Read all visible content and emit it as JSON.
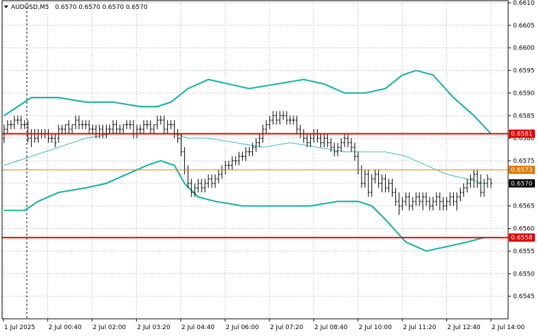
{
  "header": {
    "symbol": "AUDUSD,M5",
    "ohlc": "0.6570 0.6570 0.6570 0.6570"
  },
  "colors": {
    "background": "#ffffff",
    "grid": "#c8c8c8",
    "bars": "#000000",
    "bollinger": "#20b2aa",
    "ma": "#20b2aa",
    "strong_level": "#e00000",
    "orange_level": "#e07a00",
    "current_price": "#000000"
  },
  "chart_data": {
    "type": "ohlc-bars",
    "symbol": "AUDUSD",
    "timeframe": "M5",
    "ylim": [
      0.654,
      0.661
    ],
    "y_ticks": [
      "0.6610",
      "0.6605",
      "0.6600",
      "0.6595",
      "0.6590",
      "0.6585",
      "0.6580",
      "0.6575",
      "0.6570",
      "0.6565",
      "0.6560",
      "0.6555",
      "0.6550",
      "0.6545"
    ],
    "x_ticks": [
      "1 Jul 2025",
      "2 Jul 00:40",
      "2 Jul 02:00",
      "2 Jul 03:20",
      "2 Jul 04:40",
      "2 Jul 06:00",
      "2 Jul 07:20",
      "2 Jul 08:40",
      "2 Jul 10:00",
      "2 Jul 11:20",
      "2 Jul 12:40",
      "2 Jul 14:00"
    ],
    "period_separator_index": 0.5,
    "levels": [
      {
        "price": 0.6581,
        "label": "0.6581",
        "color": "#e00000",
        "width": 2
      },
      {
        "price": 0.6573,
        "label": "0.6573",
        "color": "#e07a00",
        "width": 1
      },
      {
        "price": 0.6558,
        "label": "0.6558",
        "color": "#e00000",
        "width": 2
      }
    ],
    "current_price": {
      "price": 0.657,
      "label": "0.6570"
    },
    "bollinger_upper": [
      [
        0,
        0.6585
      ],
      [
        4,
        0.6587
      ],
      [
        8,
        0.6589
      ],
      [
        16,
        0.6589
      ],
      [
        24,
        0.6588
      ],
      [
        32,
        0.6588
      ],
      [
        40,
        0.6587
      ],
      [
        45,
        0.6587
      ],
      [
        49,
        0.6588
      ],
      [
        54,
        0.6591
      ],
      [
        60,
        0.6593
      ],
      [
        66,
        0.6592
      ],
      [
        72,
        0.6591
      ],
      [
        80,
        0.6592
      ],
      [
        88,
        0.6593
      ],
      [
        94,
        0.6592
      ],
      [
        100,
        0.659
      ],
      [
        106,
        0.659
      ],
      [
        112,
        0.6591
      ],
      [
        117,
        0.6594
      ],
      [
        121,
        0.6595
      ],
      [
        126,
        0.6594
      ],
      [
        132,
        0.6589
      ],
      [
        138,
        0.6585
      ],
      [
        143,
        0.6581
      ]
    ],
    "bollinger_lower": [
      [
        0,
        0.6564
      ],
      [
        6,
        0.6564
      ],
      [
        10,
        0.6566
      ],
      [
        16,
        0.6568
      ],
      [
        24,
        0.6569
      ],
      [
        30,
        0.657
      ],
      [
        36,
        0.6572
      ],
      [
        42,
        0.6574
      ],
      [
        46,
        0.6575
      ],
      [
        50,
        0.6574
      ],
      [
        53,
        0.657
      ],
      [
        57,
        0.6567
      ],
      [
        62,
        0.6566
      ],
      [
        70,
        0.6565
      ],
      [
        80,
        0.6565
      ],
      [
        90,
        0.6565
      ],
      [
        98,
        0.6566
      ],
      [
        104,
        0.6566
      ],
      [
        108,
        0.6565
      ],
      [
        112,
        0.6562
      ],
      [
        118,
        0.6557
      ],
      [
        124,
        0.6555
      ],
      [
        130,
        0.6556
      ],
      [
        136,
        0.6557
      ],
      [
        141,
        0.6558
      ]
    ],
    "ma_middle": [
      [
        0,
        0.6574
      ],
      [
        8,
        0.6576
      ],
      [
        16,
        0.6578
      ],
      [
        24,
        0.658
      ],
      [
        32,
        0.6581
      ],
      [
        40,
        0.6581
      ],
      [
        46,
        0.6581
      ],
      [
        50,
        0.6581
      ],
      [
        54,
        0.658
      ],
      [
        60,
        0.658
      ],
      [
        68,
        0.6579
      ],
      [
        76,
        0.6578
      ],
      [
        84,
        0.6579
      ],
      [
        92,
        0.6578
      ],
      [
        100,
        0.6577
      ],
      [
        106,
        0.6577
      ],
      [
        112,
        0.6577
      ],
      [
        118,
        0.6576
      ],
      [
        124,
        0.6574
      ],
      [
        130,
        0.6572
      ],
      [
        136,
        0.6571
      ],
      [
        141,
        0.657
      ]
    ],
    "bars": [
      [
        0.658,
        0.6583,
        0.6579,
        0.6582
      ],
      [
        0.6582,
        0.6584,
        0.6581,
        0.6583
      ],
      [
        0.6583,
        0.6584,
        0.6582,
        0.6583
      ],
      [
        0.6583,
        0.6585,
        0.6582,
        0.6584
      ],
      [
        0.6584,
        0.6585,
        0.6583,
        0.6584
      ],
      [
        0.6584,
        0.6585,
        0.6582,
        0.6583
      ],
      [
        0.6583,
        0.6584,
        0.6582,
        0.6583
      ],
      [
        0.6583,
        0.6584,
        0.6579,
        0.658
      ],
      [
        0.658,
        0.6582,
        0.6578,
        0.6581
      ],
      [
        0.6581,
        0.6582,
        0.6579,
        0.658
      ],
      [
        0.658,
        0.6582,
        0.6579,
        0.6581
      ],
      [
        0.6581,
        0.6582,
        0.658,
        0.6581
      ],
      [
        0.6581,
        0.6582,
        0.658,
        0.6581
      ],
      [
        0.6581,
        0.6582,
        0.6579,
        0.658
      ],
      [
        0.658,
        0.6581,
        0.6579,
        0.658
      ],
      [
        0.658,
        0.6581,
        0.6578,
        0.6579
      ],
      [
        0.658,
        0.6583,
        0.6579,
        0.6582
      ],
      [
        0.6582,
        0.6583,
        0.6581,
        0.6582
      ],
      [
        0.6582,
        0.6583,
        0.6581,
        0.6583
      ],
      [
        0.6583,
        0.6584,
        0.6581,
        0.6582
      ],
      [
        0.6582,
        0.6583,
        0.6581,
        0.6583
      ],
      [
        0.6583,
        0.6585,
        0.6582,
        0.6584
      ],
      [
        0.6584,
        0.6585,
        0.6582,
        0.6583
      ],
      [
        0.6583,
        0.6584,
        0.6582,
        0.6583
      ],
      [
        0.6583,
        0.6584,
        0.6582,
        0.6583
      ],
      [
        0.6583,
        0.6584,
        0.6581,
        0.6582
      ],
      [
        0.6582,
        0.6583,
        0.6581,
        0.6582
      ],
      [
        0.6582,
        0.6583,
        0.658,
        0.6581
      ],
      [
        0.6581,
        0.6583,
        0.658,
        0.6582
      ],
      [
        0.6582,
        0.6583,
        0.658,
        0.6581
      ],
      [
        0.6581,
        0.6583,
        0.658,
        0.6582
      ],
      [
        0.6582,
        0.6583,
        0.6581,
        0.6582
      ],
      [
        0.6582,
        0.6584,
        0.6581,
        0.6583
      ],
      [
        0.6583,
        0.6584,
        0.6581,
        0.6582
      ],
      [
        0.6582,
        0.6583,
        0.6581,
        0.6582
      ],
      [
        0.6582,
        0.6583,
        0.6581,
        0.6583
      ],
      [
        0.6583,
        0.6584,
        0.6582,
        0.6583
      ],
      [
        0.6583,
        0.6584,
        0.6582,
        0.6583
      ],
      [
        0.6583,
        0.6584,
        0.658,
        0.6581
      ],
      [
        0.6581,
        0.6583,
        0.658,
        0.6582
      ],
      [
        0.6582,
        0.6583,
        0.6581,
        0.6582
      ],
      [
        0.6582,
        0.6584,
        0.6581,
        0.6583
      ],
      [
        0.6583,
        0.6584,
        0.6582,
        0.6583
      ],
      [
        0.6583,
        0.6584,
        0.6581,
        0.6582
      ],
      [
        0.6582,
        0.6583,
        0.6581,
        0.6583
      ],
      [
        0.6583,
        0.6585,
        0.6582,
        0.6584
      ],
      [
        0.6584,
        0.6585,
        0.6583,
        0.6584
      ],
      [
        0.6584,
        0.6585,
        0.6581,
        0.6582
      ],
      [
        0.6582,
        0.6584,
        0.6581,
        0.6583
      ],
      [
        0.6583,
        0.6584,
        0.6582,
        0.6583
      ],
      [
        0.6583,
        0.6584,
        0.658,
        0.6581
      ],
      [
        0.6581,
        0.6582,
        0.6579,
        0.658
      ],
      [
        0.658,
        0.6581,
        0.6576,
        0.6577
      ],
      [
        0.6577,
        0.6578,
        0.6572,
        0.6573
      ],
      [
        0.6573,
        0.6574,
        0.6569,
        0.657
      ],
      [
        0.657,
        0.6571,
        0.6567,
        0.6568
      ],
      [
        0.6568,
        0.657,
        0.6567,
        0.6569
      ],
      [
        0.6569,
        0.6571,
        0.6568,
        0.657
      ],
      [
        0.657,
        0.6571,
        0.6568,
        0.6569
      ],
      [
        0.6569,
        0.6571,
        0.6568,
        0.657
      ],
      [
        0.657,
        0.6572,
        0.6569,
        0.6571
      ],
      [
        0.6571,
        0.6572,
        0.6569,
        0.657
      ],
      [
        0.657,
        0.6572,
        0.6569,
        0.6571
      ],
      [
        0.6571,
        0.6573,
        0.657,
        0.6572
      ],
      [
        0.6572,
        0.6574,
        0.6571,
        0.6573
      ],
      [
        0.6573,
        0.6575,
        0.6572,
        0.6574
      ],
      [
        0.6574,
        0.6575,
        0.6573,
        0.6574
      ],
      [
        0.6574,
        0.6576,
        0.6573,
        0.6575
      ],
      [
        0.6575,
        0.6576,
        0.6574,
        0.6575
      ],
      [
        0.6575,
        0.6577,
        0.6574,
        0.6576
      ],
      [
        0.6576,
        0.6577,
        0.6575,
        0.6576
      ],
      [
        0.6576,
        0.6578,
        0.6575,
        0.6577
      ],
      [
        0.6577,
        0.6578,
        0.6576,
        0.6577
      ],
      [
        0.6577,
        0.6579,
        0.6576,
        0.6578
      ],
      [
        0.6578,
        0.658,
        0.6577,
        0.6579
      ],
      [
        0.6579,
        0.6581,
        0.6578,
        0.658
      ],
      [
        0.658,
        0.6583,
        0.6579,
        0.6582
      ],
      [
        0.6582,
        0.6584,
        0.6581,
        0.6583
      ],
      [
        0.6583,
        0.6585,
        0.6582,
        0.6584
      ],
      [
        0.6584,
        0.6586,
        0.6583,
        0.6585
      ],
      [
        0.6585,
        0.6586,
        0.6583,
        0.6584
      ],
      [
        0.6584,
        0.6586,
        0.6583,
        0.6585
      ],
      [
        0.6585,
        0.6586,
        0.6584,
        0.6585
      ],
      [
        0.6585,
        0.6586,
        0.6583,
        0.6584
      ],
      [
        0.6584,
        0.6585,
        0.6583,
        0.6584
      ],
      [
        0.6584,
        0.6585,
        0.6583,
        0.6584
      ],
      [
        0.6584,
        0.6585,
        0.6581,
        0.6582
      ],
      [
        0.6582,
        0.6583,
        0.658,
        0.6581
      ],
      [
        0.6581,
        0.6582,
        0.6579,
        0.658
      ],
      [
        0.658,
        0.6581,
        0.6578,
        0.6579
      ],
      [
        0.6579,
        0.6581,
        0.6578,
        0.658
      ],
      [
        0.658,
        0.6582,
        0.6579,
        0.6581
      ],
      [
        0.6581,
        0.6582,
        0.6579,
        0.658
      ],
      [
        0.658,
        0.6581,
        0.6578,
        0.6579
      ],
      [
        0.6579,
        0.6581,
        0.6578,
        0.658
      ],
      [
        0.658,
        0.6581,
        0.6578,
        0.6579
      ],
      [
        0.6579,
        0.658,
        0.6577,
        0.6578
      ],
      [
        0.6578,
        0.6579,
        0.6576,
        0.6577
      ],
      [
        0.6577,
        0.6579,
        0.6576,
        0.6578
      ],
      [
        0.6578,
        0.658,
        0.6577,
        0.6579
      ],
      [
        0.6579,
        0.6581,
        0.6578,
        0.658
      ],
      [
        0.658,
        0.6581,
        0.6578,
        0.6579
      ],
      [
        0.6579,
        0.658,
        0.6577,
        0.6578
      ],
      [
        0.6578,
        0.6579,
        0.6575,
        0.6576
      ],
      [
        0.6576,
        0.6577,
        0.6572,
        0.6573
      ],
      [
        0.6573,
        0.6574,
        0.6569,
        0.657
      ],
      [
        0.657,
        0.6573,
        0.6569,
        0.6572
      ],
      [
        0.6572,
        0.6573,
        0.6567,
        0.6568
      ],
      [
        0.6568,
        0.6572,
        0.6567,
        0.6571
      ],
      [
        0.6571,
        0.6573,
        0.657,
        0.6572
      ],
      [
        0.6572,
        0.6573,
        0.6569,
        0.657
      ],
      [
        0.657,
        0.6572,
        0.6568,
        0.6571
      ],
      [
        0.6571,
        0.6572,
        0.6568,
        0.6569
      ],
      [
        0.6569,
        0.6571,
        0.6568,
        0.657
      ],
      [
        0.657,
        0.6571,
        0.6567,
        0.6568
      ],
      [
        0.6568,
        0.6569,
        0.6565,
        0.6566
      ],
      [
        0.6566,
        0.6568,
        0.6563,
        0.6565
      ],
      [
        0.6565,
        0.6567,
        0.6564,
        0.6566
      ],
      [
        0.6566,
        0.6568,
        0.6565,
        0.6567
      ],
      [
        0.6567,
        0.6568,
        0.6564,
        0.6565
      ],
      [
        0.6565,
        0.6567,
        0.6564,
        0.6566
      ],
      [
        0.6566,
        0.6568,
        0.6565,
        0.6567
      ],
      [
        0.6567,
        0.6568,
        0.6565,
        0.6566
      ],
      [
        0.6566,
        0.6568,
        0.6564,
        0.6567
      ],
      [
        0.6567,
        0.6568,
        0.6565,
        0.6566
      ],
      [
        0.6566,
        0.6567,
        0.6564,
        0.6565
      ],
      [
        0.6565,
        0.6567,
        0.6564,
        0.6566
      ],
      [
        0.6566,
        0.6568,
        0.6565,
        0.6567
      ],
      [
        0.6567,
        0.6568,
        0.6564,
        0.6566
      ],
      [
        0.6566,
        0.6567,
        0.6564,
        0.6565
      ],
      [
        0.6565,
        0.6567,
        0.6564,
        0.6566
      ],
      [
        0.6566,
        0.6568,
        0.6565,
        0.6567
      ],
      [
        0.6567,
        0.6568,
        0.6565,
        0.6566
      ],
      [
        0.6566,
        0.6568,
        0.6564,
        0.6567
      ],
      [
        0.6567,
        0.6569,
        0.6566,
        0.6568
      ],
      [
        0.6568,
        0.657,
        0.6567,
        0.6569
      ],
      [
        0.6569,
        0.6571,
        0.6568,
        0.657
      ],
      [
        0.657,
        0.6572,
        0.6569,
        0.6571
      ],
      [
        0.6571,
        0.6573,
        0.6569,
        0.6572
      ],
      [
        0.6572,
        0.6573,
        0.6569,
        0.657
      ],
      [
        0.657,
        0.6572,
        0.6567,
        0.6568
      ],
      [
        0.6568,
        0.6571,
        0.6567,
        0.657
      ],
      [
        0.657,
        0.6572,
        0.6569,
        0.6571
      ],
      [
        0.6571,
        0.6571,
        0.6569,
        0.657
      ]
    ]
  }
}
